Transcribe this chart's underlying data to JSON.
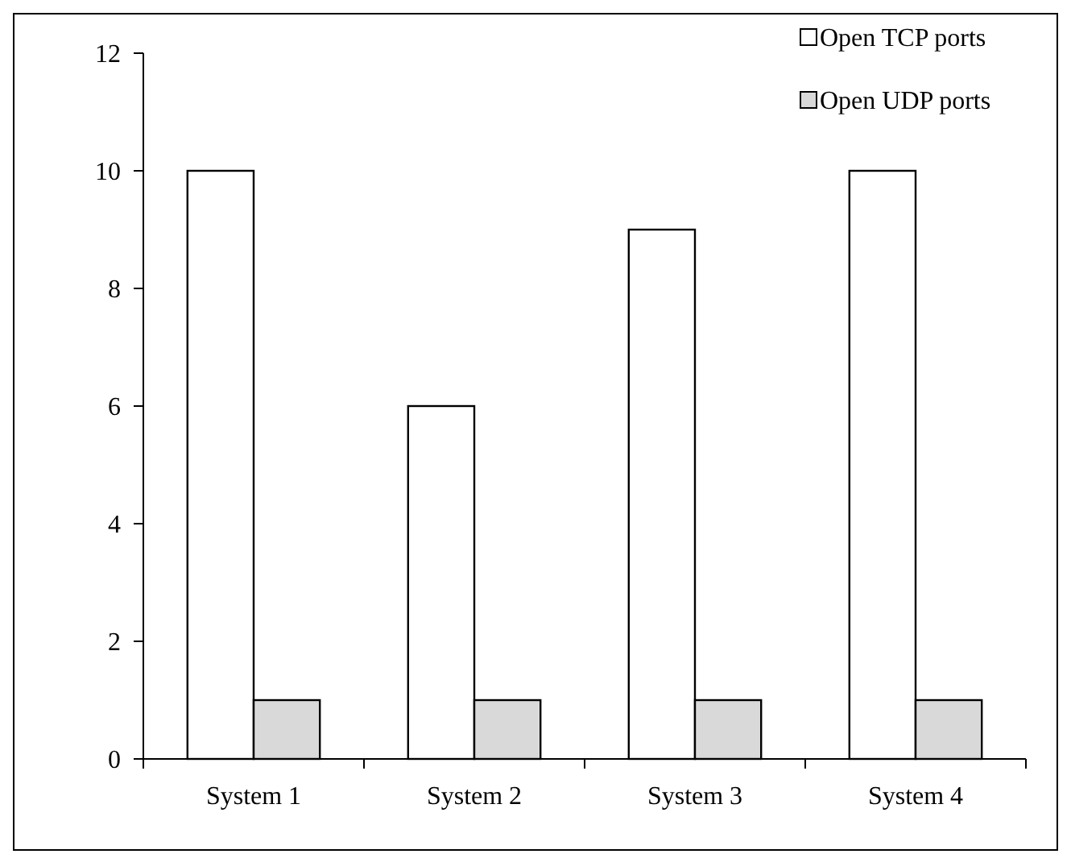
{
  "chart_data": {
    "type": "bar",
    "categories": [
      "System 1",
      "System 2",
      "System 3",
      "System 4"
    ],
    "series": [
      {
        "name": "Open TCP ports",
        "color": "#ffffff",
        "values": [
          10,
          6,
          9,
          10
        ]
      },
      {
        "name": "Open UDP ports",
        "color": "#d9d9d9",
        "values": [
          1,
          1,
          1,
          1
        ]
      }
    ],
    "ylim": [
      0,
      12
    ],
    "yticks": [
      0,
      2,
      4,
      6,
      8,
      10,
      12
    ],
    "grid": false,
    "legend": "top right"
  }
}
